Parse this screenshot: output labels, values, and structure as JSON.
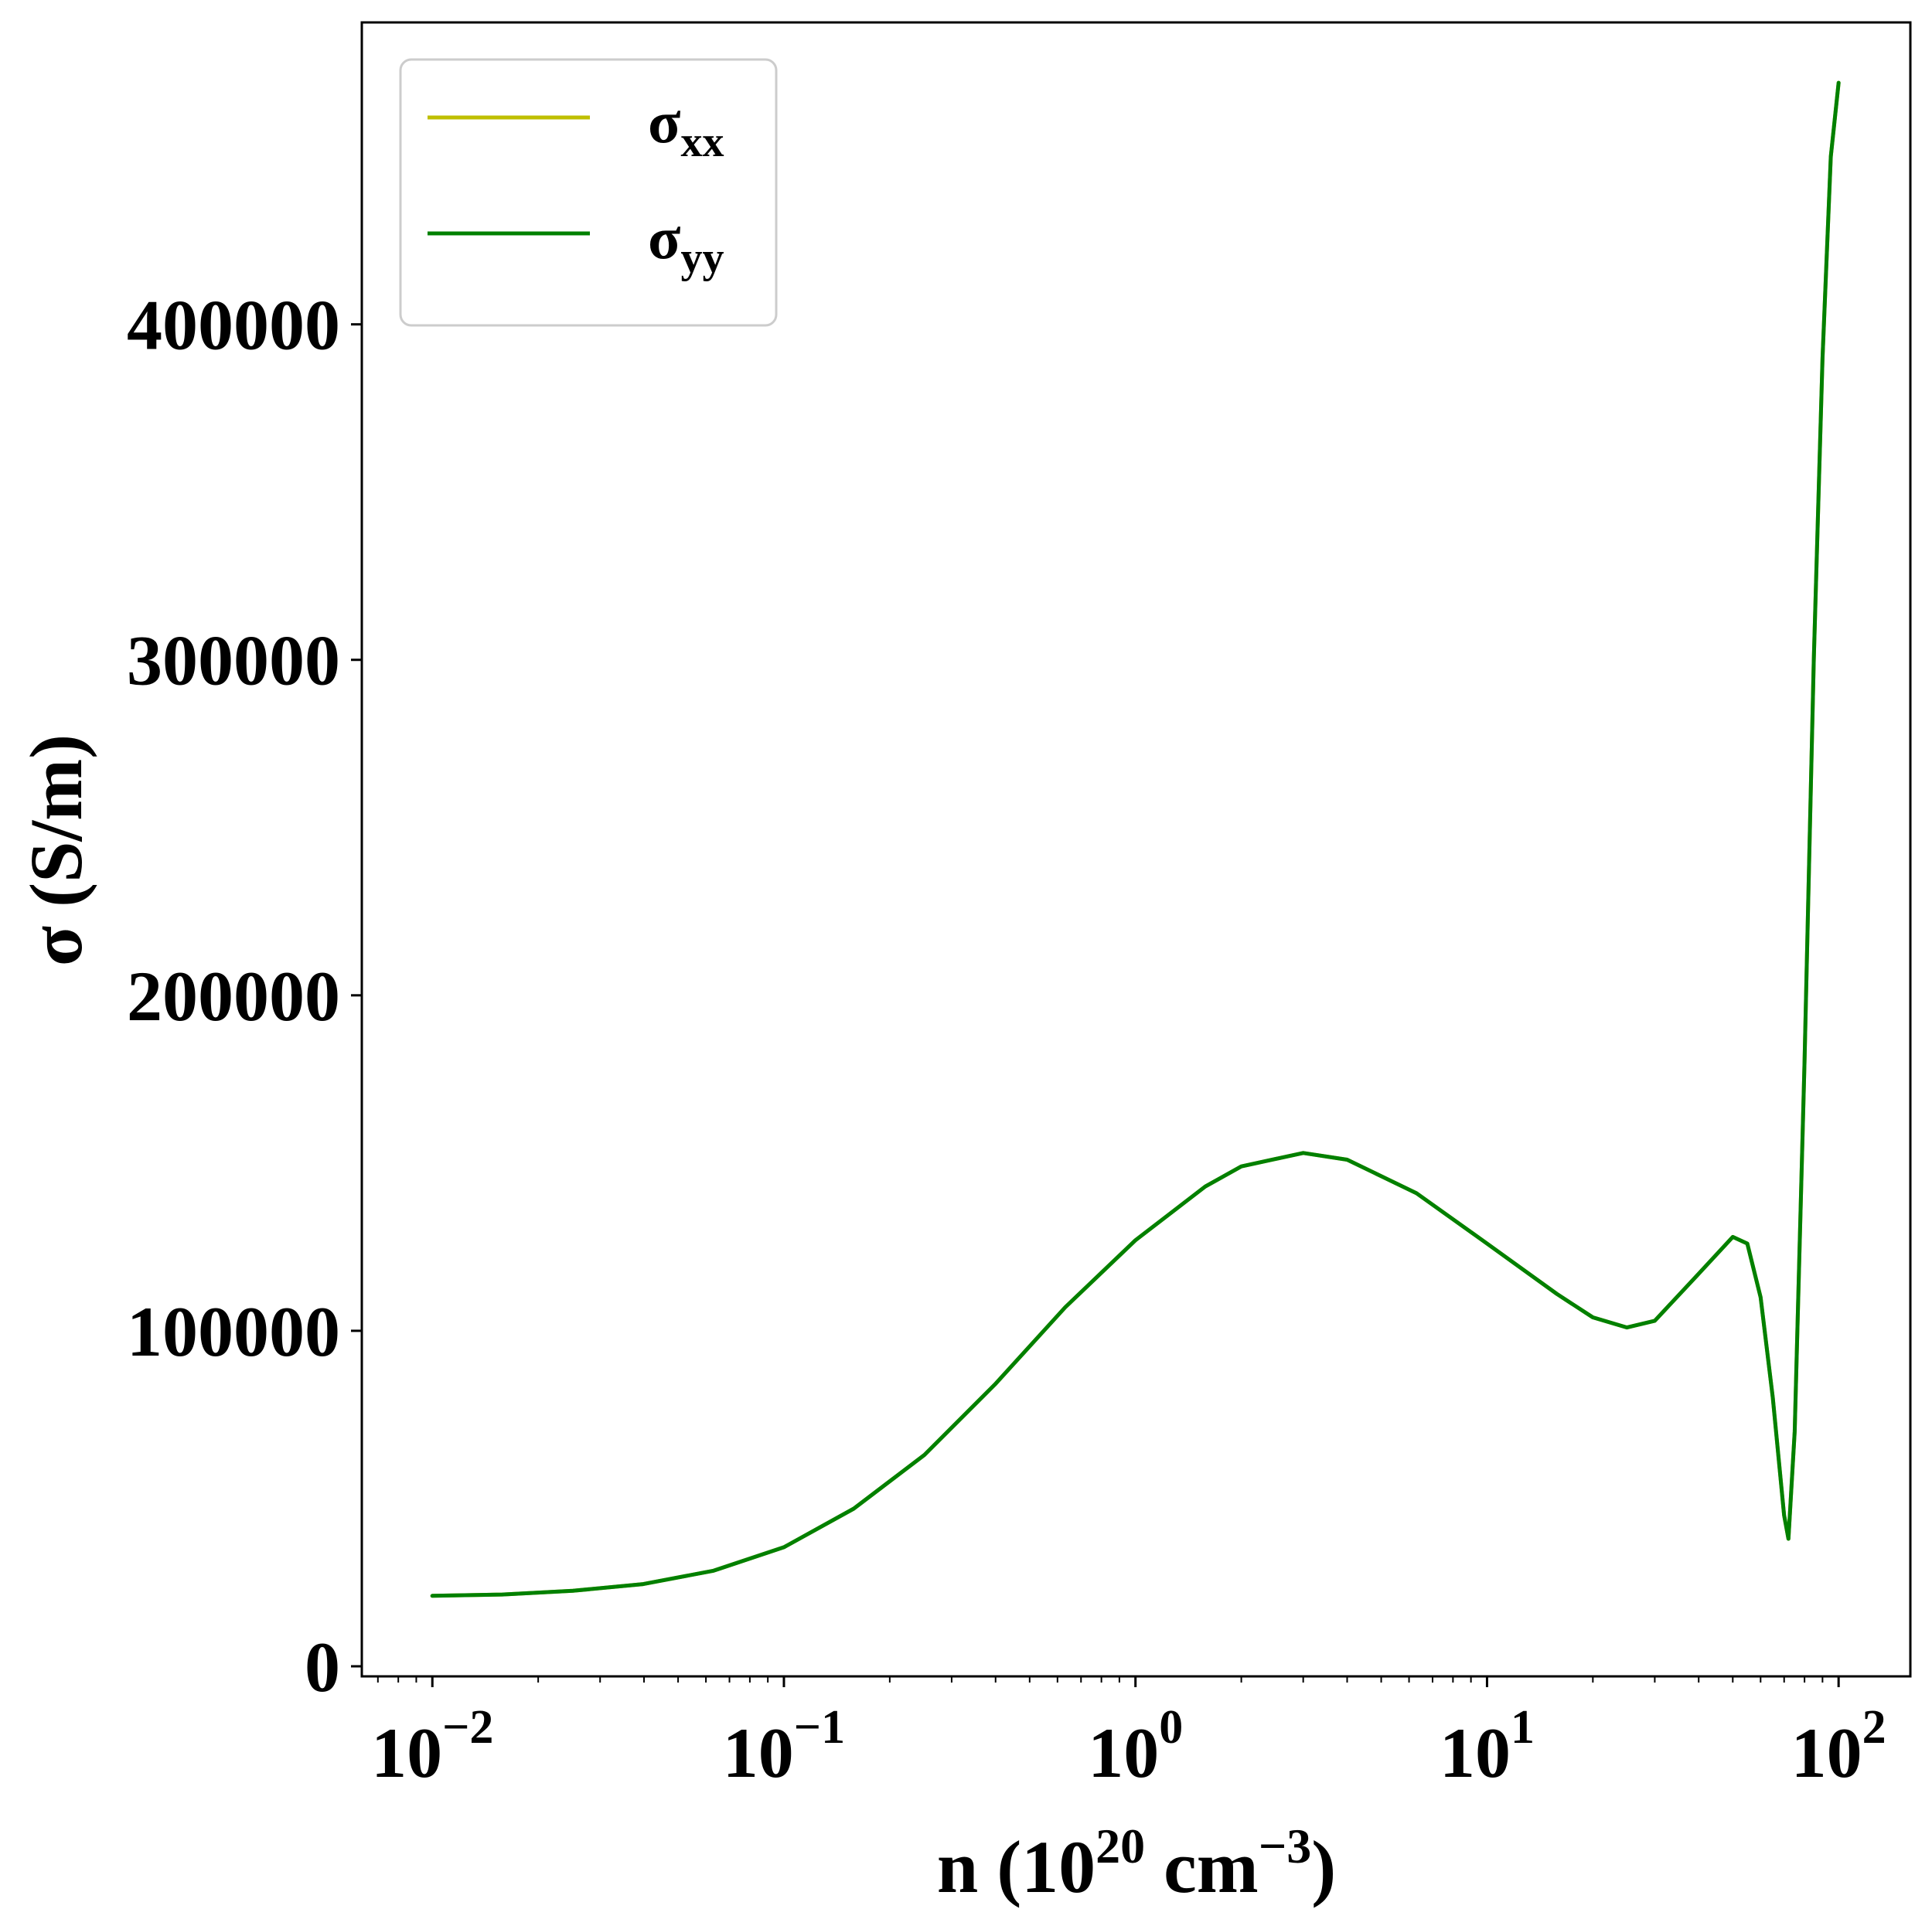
{
  "chart_data": {
    "type": "line",
    "xscale": "log",
    "xlim": [
      0.0063,
      160
    ],
    "ylim": [
      -3000,
      490000
    ],
    "grid": false,
    "legend_position": "top-left",
    "xlabel": {
      "prefix": "n (10",
      "sup1": "20",
      "middle": " cm",
      "sup2": "−3",
      "suffix": ")"
    },
    "ylabel": "σ (S/m)",
    "yticks": [
      {
        "value": 0,
        "label": "0"
      },
      {
        "value": 100000,
        "label": "100000"
      },
      {
        "value": 200000,
        "label": "200000"
      },
      {
        "value": 300000,
        "label": "300000"
      },
      {
        "value": 400000,
        "label": "400000"
      }
    ],
    "xticks": [
      {
        "value": 0.01,
        "base": "10",
        "exp": "−2"
      },
      {
        "value": 0.1,
        "base": "10",
        "exp": "−1"
      },
      {
        "value": 1,
        "base": "10",
        "exp": "0"
      },
      {
        "value": 10,
        "base": "10",
        "exp": "1"
      },
      {
        "value": 100,
        "base": "10",
        "exp": "2"
      }
    ],
    "series": [
      {
        "name": "σxx",
        "label_main": "σ",
        "label_sub": "xx",
        "color": "#bfbf00",
        "x": [
          0.01,
          0.0158,
          0.0251,
          0.0398,
          0.0631,
          0.1,
          0.158,
          0.251,
          0.398,
          0.631,
          1.0,
          1.58,
          2.0,
          3.0,
          4.0,
          6.3,
          10,
          15.8,
          20,
          25,
          30,
          40,
          50,
          55,
          60,
          65,
          70,
          72,
          75,
          80,
          85,
          90,
          95,
          100
        ],
        "y": [
          21000,
          21400,
          22500,
          24500,
          28500,
          35500,
          47000,
          63000,
          84000,
          107000,
          127000,
          143000,
          149000,
          153000,
          151000,
          141000,
          126000,
          111000,
          104000,
          101000,
          103000,
          117000,
          128000,
          126000,
          110000,
          80000,
          45000,
          38000,
          70000,
          180000,
          300000,
          390000,
          450000,
          472000
        ]
      },
      {
        "name": "σyy",
        "label_main": "σ",
        "label_sub": "yy",
        "color": "#008000",
        "x": [
          0.01,
          0.0158,
          0.0251,
          0.0398,
          0.0631,
          0.1,
          0.158,
          0.251,
          0.398,
          0.631,
          1.0,
          1.58,
          2.0,
          3.0,
          4.0,
          6.3,
          10,
          15.8,
          20,
          25,
          30,
          40,
          50,
          55,
          60,
          65,
          70,
          72,
          75,
          80,
          85,
          90,
          95,
          100
        ],
        "y": [
          21000,
          21400,
          22500,
          24500,
          28500,
          35500,
          47000,
          63000,
          84000,
          107000,
          127000,
          143000,
          149000,
          153000,
          151000,
          141000,
          126000,
          111000,
          104000,
          101000,
          103000,
          117000,
          128000,
          126000,
          110000,
          80000,
          45000,
          38000,
          70000,
          180000,
          300000,
          390000,
          450000,
          472000
        ]
      }
    ]
  }
}
